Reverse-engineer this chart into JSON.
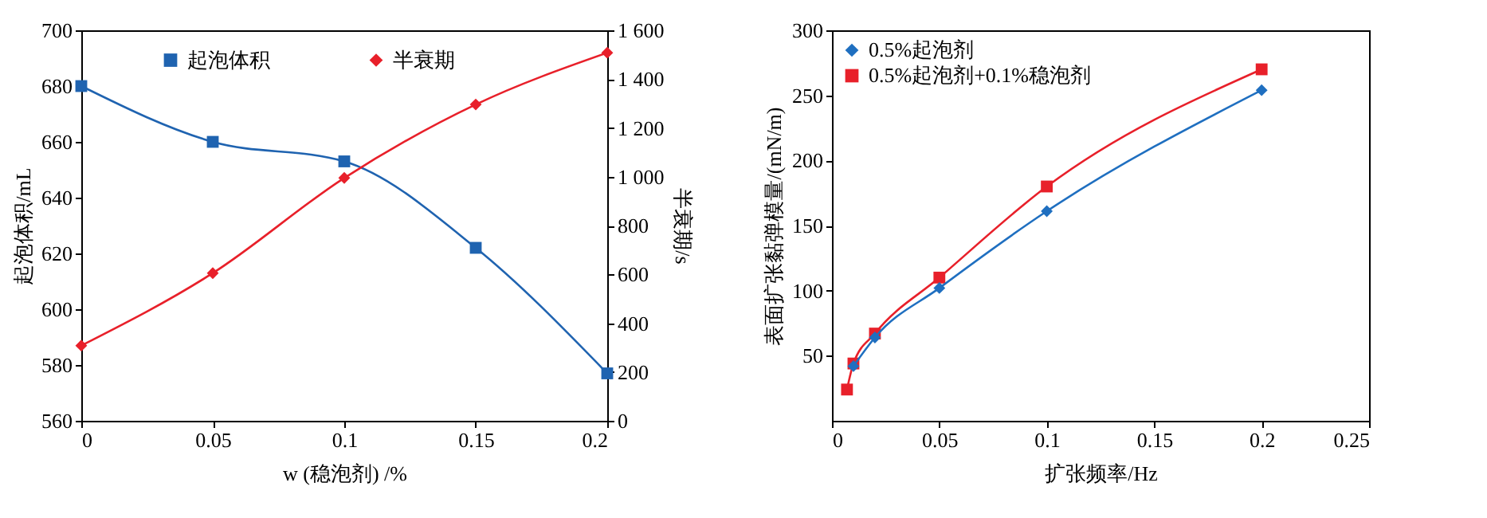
{
  "chart_data": [
    {
      "type": "line",
      "xlabel": "w (稳泡剂) /%",
      "ylabel": "起泡体积/mL",
      "y2label": "半衰期/s",
      "x": [
        0,
        0.05,
        0.1,
        0.15,
        0.2
      ],
      "series": [
        {
          "name": "起泡体积",
          "color": "#1f63b0",
          "marker": "square",
          "values": [
            680,
            660,
            653,
            622,
            577
          ]
        },
        {
          "name": "半衰期",
          "color": "#e8202a",
          "marker": "diamond",
          "axis": "y2",
          "values": [
            308,
            605,
            995,
            1296,
            1508
          ]
        }
      ],
      "xlim": [
        0,
        0.2
      ],
      "xticks": [
        0,
        0.05,
        0.1,
        0.15,
        0.2
      ],
      "ylim": [
        560,
        700
      ],
      "yticks": [
        560,
        580,
        600,
        620,
        640,
        660,
        680,
        700
      ],
      "y2lim": [
        0,
        1600
      ],
      "y2ticks": [
        0,
        200,
        400,
        600,
        800,
        {
          "value": 1000,
          "label": "1 000"
        },
        {
          "value": 1200,
          "label": "1 200"
        },
        {
          "value": 1400,
          "label": "1 400"
        },
        {
          "value": 1600,
          "label": "1 600"
        }
      ],
      "legend": "top",
      "grid": false
    },
    {
      "type": "line",
      "xlabel": "扩张频率/Hz",
      "ylabel": "表面扩张黏弹模量/(mN/m)",
      "series": [
        {
          "name": "0.5%起泡剂",
          "color": "#1f6fc0",
          "marker": "diamond",
          "x": [
            0.01,
            0.02,
            0.05,
            0.1,
            0.2
          ],
          "values": [
            42,
            64,
            102,
            161,
            254
          ]
        },
        {
          "name": "0.5%起泡剂+0.1%稳泡剂",
          "color": "#e8202a",
          "marker": "square",
          "x": [
            0.007,
            0.01,
            0.02,
            0.05,
            0.1,
            0.2
          ],
          "values": [
            24,
            44,
            67,
            110,
            180,
            270
          ]
        }
      ],
      "xlim": [
        0,
        0.25
      ],
      "xticks": [
        0,
        0.05,
        0.1,
        0.15,
        0.2,
        0.25
      ],
      "ylim": [
        0,
        300
      ],
      "yticks": [
        50,
        100,
        150,
        200,
        250,
        300
      ],
      "legend": "top left",
      "grid": false
    }
  ]
}
